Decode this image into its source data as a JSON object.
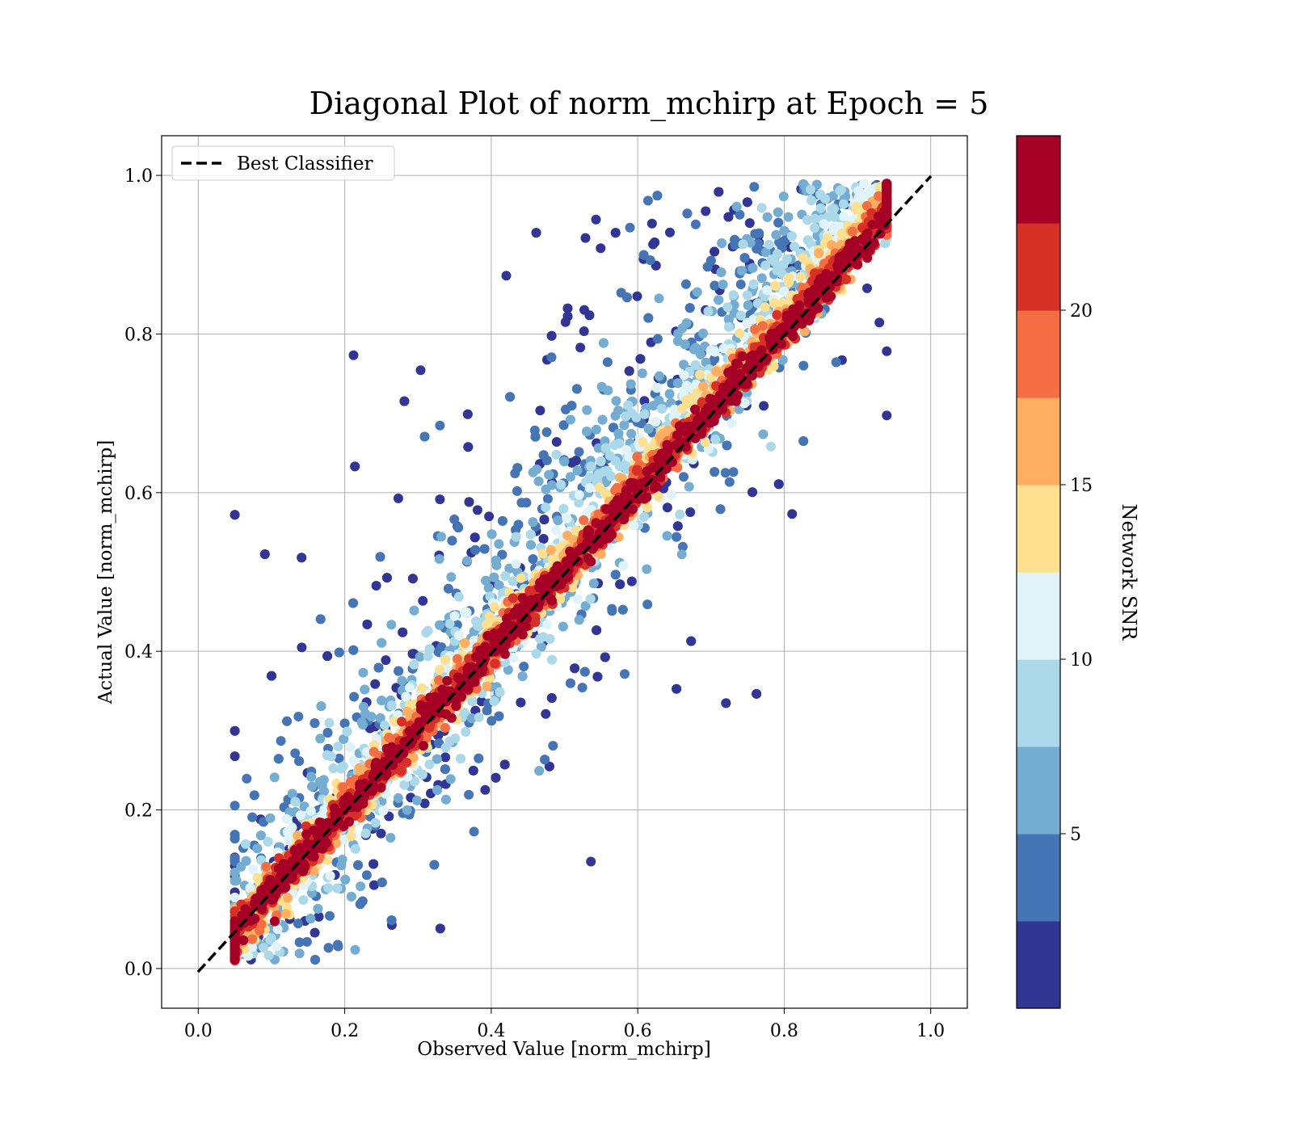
{
  "chart_data": {
    "type": "scatter",
    "title": "Diagonal Plot of norm_mchirp at Epoch = 5",
    "xlabel": "Observed Value [norm_mchirp]",
    "ylabel": "Actual Value [norm_mchirp]",
    "xlim": [
      -0.05,
      1.05
    ],
    "ylim": [
      -0.05,
      1.05
    ],
    "x_ticks": [
      "0.0",
      "0.2",
      "0.4",
      "0.6",
      "0.8",
      "1.0"
    ],
    "y_ticks": [
      "0.0",
      "0.2",
      "0.4",
      "0.6",
      "0.8",
      "1.0"
    ],
    "grid": true,
    "legend": {
      "placement": "upper-left",
      "entries": [
        "Best Classifier"
      ]
    },
    "reference_line": {
      "name": "Best Classifier",
      "style": "dashed",
      "color": "#000000",
      "x": [
        0.0,
        1.0
      ],
      "y": [
        0.0,
        1.0
      ]
    },
    "colorbar": {
      "label": "Network SNR",
      "ticks": [
        "5",
        "10",
        "15",
        "20"
      ],
      "tick_values": [
        5,
        10,
        15,
        20
      ],
      "range": [
        0,
        25
      ],
      "colormap": "RdYlBu_r",
      "colors": [
        "#313695",
        "#4575b4",
        "#74add1",
        "#abd9e9",
        "#e0f3f8",
        "#fee090",
        "#fdae61",
        "#f46d43",
        "#d73027",
        "#a50026"
      ]
    },
    "point_distribution": {
      "description_values": "points cluster along y = x; high SNR (dark red) tightly on the diagonal, low SNR (blue) spread toward x≈0.4, y≈0.1–1.0",
      "x_range": [
        0.05,
        0.94
      ],
      "y_range": [
        0.0,
        1.0
      ]
    }
  }
}
